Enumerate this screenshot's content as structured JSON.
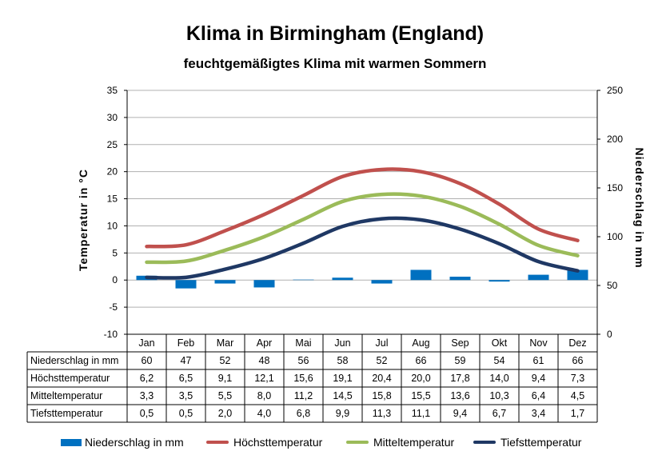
{
  "title": "Klima in Birmingham (England)",
  "subtitle": "feuchtgemäßigtes Klima mit warmen Sommern",
  "chart_data": {
    "type": "bar+line",
    "categories": [
      "Jan",
      "Feb",
      "Mar",
      "Apr",
      "Mai",
      "Jun",
      "Jul",
      "Aug",
      "Sep",
      "Okt",
      "Nov",
      "Dez"
    ],
    "ylabel_left": "Temperatur in °C",
    "ylabel_right": "Niederschlag in mm",
    "ylim_left": [
      -10,
      35
    ],
    "ylim_right": [
      0,
      250
    ],
    "yticks_left": [
      "35",
      "30",
      "25",
      "20",
      "15",
      "10",
      "5",
      "0",
      "-5",
      "-10"
    ],
    "yticks_right": [
      "250",
      "200",
      "150",
      "100",
      "50",
      "0"
    ],
    "grid": true,
    "legend_position": "bottom",
    "series": [
      {
        "name": "Niederschlag in mm",
        "type": "bar",
        "axis": "right",
        "color": "#0070C0",
        "values": [
          60,
          47,
          52,
          48,
          56,
          58,
          52,
          66,
          59,
          54,
          61,
          66
        ],
        "labels": [
          "60",
          "47",
          "52",
          "48",
          "56",
          "58",
          "52",
          "66",
          "59",
          "54",
          "61",
          "66"
        ]
      },
      {
        "name": "Höchsttemperatur",
        "type": "line",
        "axis": "left",
        "color": "#C0504D",
        "values": [
          6.2,
          6.5,
          9.1,
          12.1,
          15.6,
          19.1,
          20.4,
          20.0,
          17.8,
          14.0,
          9.4,
          7.3
        ],
        "labels": [
          "6,2",
          "6,5",
          "9,1",
          "12,1",
          "15,6",
          "19,1",
          "20,4",
          "20,0",
          "17,8",
          "14,0",
          "9,4",
          "7,3"
        ]
      },
      {
        "name": "Mitteltemperatur",
        "type": "line",
        "axis": "left",
        "color": "#9BBB59",
        "values": [
          3.3,
          3.5,
          5.5,
          8.0,
          11.2,
          14.5,
          15.8,
          15.5,
          13.6,
          10.3,
          6.4,
          4.5
        ],
        "labels": [
          "3,3",
          "3,5",
          "5,5",
          "8,0",
          "11,2",
          "14,5",
          "15,8",
          "15,5",
          "13,6",
          "10,3",
          "6,4",
          "4,5"
        ]
      },
      {
        "name": "Tiefsttemperatur",
        "type": "line",
        "axis": "left",
        "color": "#1F3864",
        "values": [
          0.5,
          0.5,
          2.0,
          4.0,
          6.8,
          9.9,
          11.3,
          11.1,
          9.4,
          6.7,
          3.4,
          1.7
        ],
        "labels": [
          "0,5",
          "0,5",
          "2,0",
          "4,0",
          "6,8",
          "9,9",
          "11,3",
          "11,1",
          "9,4",
          "6,7",
          "3,4",
          "1,7"
        ]
      }
    ]
  }
}
